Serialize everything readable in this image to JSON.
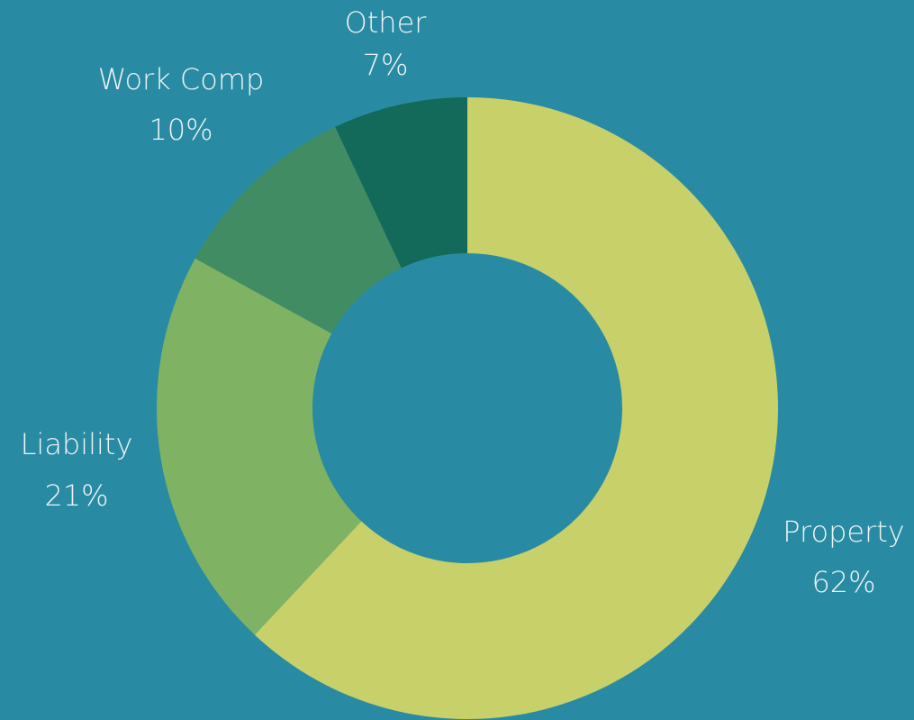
{
  "chart_data": {
    "type": "donut",
    "categories": [
      "Property",
      "Liability",
      "Work Comp",
      "Other"
    ],
    "values": [
      62,
      21,
      10,
      7
    ],
    "value_labels": [
      "62%",
      "21%",
      "10%",
      "7%"
    ],
    "colors": [
      "#c8d06a",
      "#7fb263",
      "#418c63",
      "#136a5a"
    ]
  }
}
